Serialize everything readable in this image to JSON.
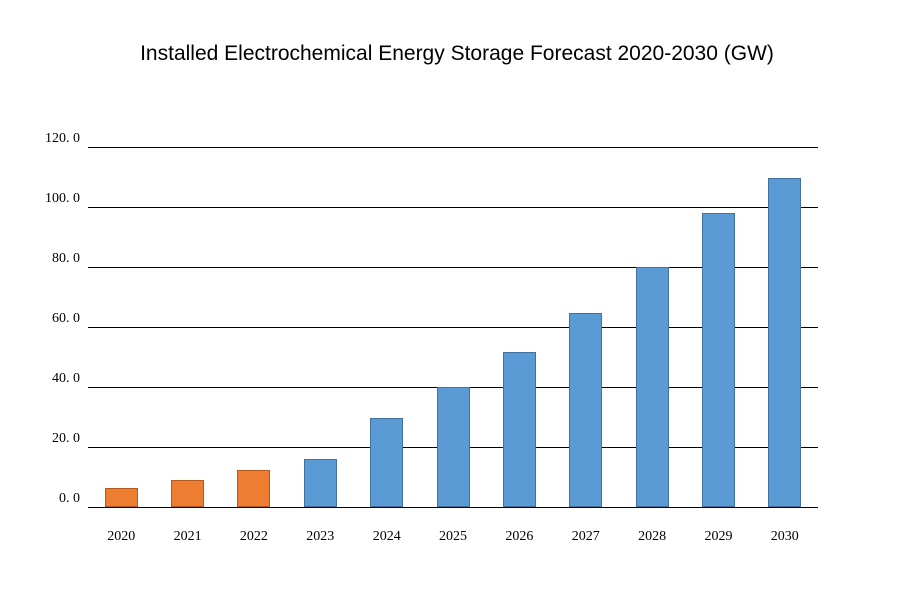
{
  "title": "Installed Electrochemical Energy Storage Forecast 2020-2030 (GW)",
  "chart_data": {
    "type": "bar",
    "title": "Installed Electrochemical Energy Storage Forecast 2020-2030 (GW)",
    "unit": "GW",
    "categories": [
      "2020",
      "2021",
      "2022",
      "2023",
      "2024",
      "2025",
      "2026",
      "2027",
      "2028",
      "2029",
      "2030"
    ],
    "values": [
      6.4,
      9.1,
      12.3,
      16.1,
      29.8,
      39.9,
      51.8,
      64.7,
      80.0,
      98.0,
      109.7
    ],
    "xlabel": "",
    "ylabel": "",
    "ylim": [
      0,
      120
    ],
    "ytick_interval": 20,
    "ytick_labels": [
      "0. 0",
      "20. 0",
      "40. 0",
      "60. 0",
      "80. 0",
      "100. 0",
      "120. 0"
    ],
    "grid": true,
    "legend_position": "none",
    "bar_color_groups": [
      "orange",
      "orange",
      "orange",
      "blue",
      "blue",
      "blue",
      "blue",
      "blue",
      "blue",
      "blue",
      "blue"
    ],
    "colors": {
      "orange": {
        "fill": "#ED7D31",
        "border": "#B55A1E"
      },
      "blue": {
        "fill": "#5B9BD5",
        "border": "#41719C"
      },
      "gridline": "#000000",
      "axis_line": "#000000",
      "text": "#000000",
      "background": "#ffffff"
    }
  }
}
